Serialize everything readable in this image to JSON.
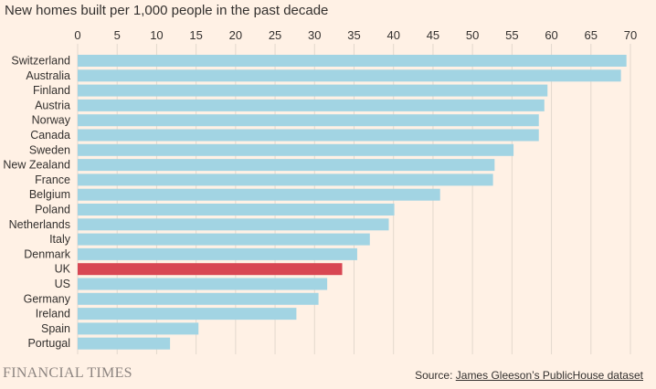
{
  "title": "New homes built per 1,000 people in the past decade",
  "brand": "FINANCIAL TIMES",
  "source": {
    "prefix": "Source: ",
    "link": "James Gleeson’s PublicHouse dataset"
  },
  "colors": {
    "background": "#fff1e5",
    "bar": "#a2d4e3",
    "highlight": "#d84653",
    "grid": "#e3d8cd",
    "text": "#33302e"
  },
  "chart_data": {
    "type": "bar",
    "orientation": "horizontal",
    "title": "New homes built per 1,000 people in the past decade",
    "xlabel": "",
    "ylabel": "",
    "xlim": [
      0,
      70
    ],
    "xticks": [
      0,
      5,
      10,
      15,
      20,
      25,
      30,
      35,
      40,
      45,
      50,
      55,
      60,
      65,
      70
    ],
    "grid": true,
    "highlight": "UK",
    "categories": [
      "Switzerland",
      "Australia",
      "Finland",
      "Austria",
      "Norway",
      "Canada",
      "Sweden",
      "New Zealand",
      "France",
      "Belgium",
      "Poland",
      "Netherlands",
      "Italy",
      "Denmark",
      "UK",
      "US",
      "Germany",
      "Ireland",
      "Spain",
      "Portugal"
    ],
    "values": [
      69.5,
      68.8,
      59.5,
      59.1,
      58.4,
      58.4,
      55.2,
      52.8,
      52.6,
      45.9,
      40.1,
      39.4,
      37.0,
      35.4,
      33.5,
      31.6,
      30.5,
      27.7,
      15.3,
      11.7
    ]
  }
}
